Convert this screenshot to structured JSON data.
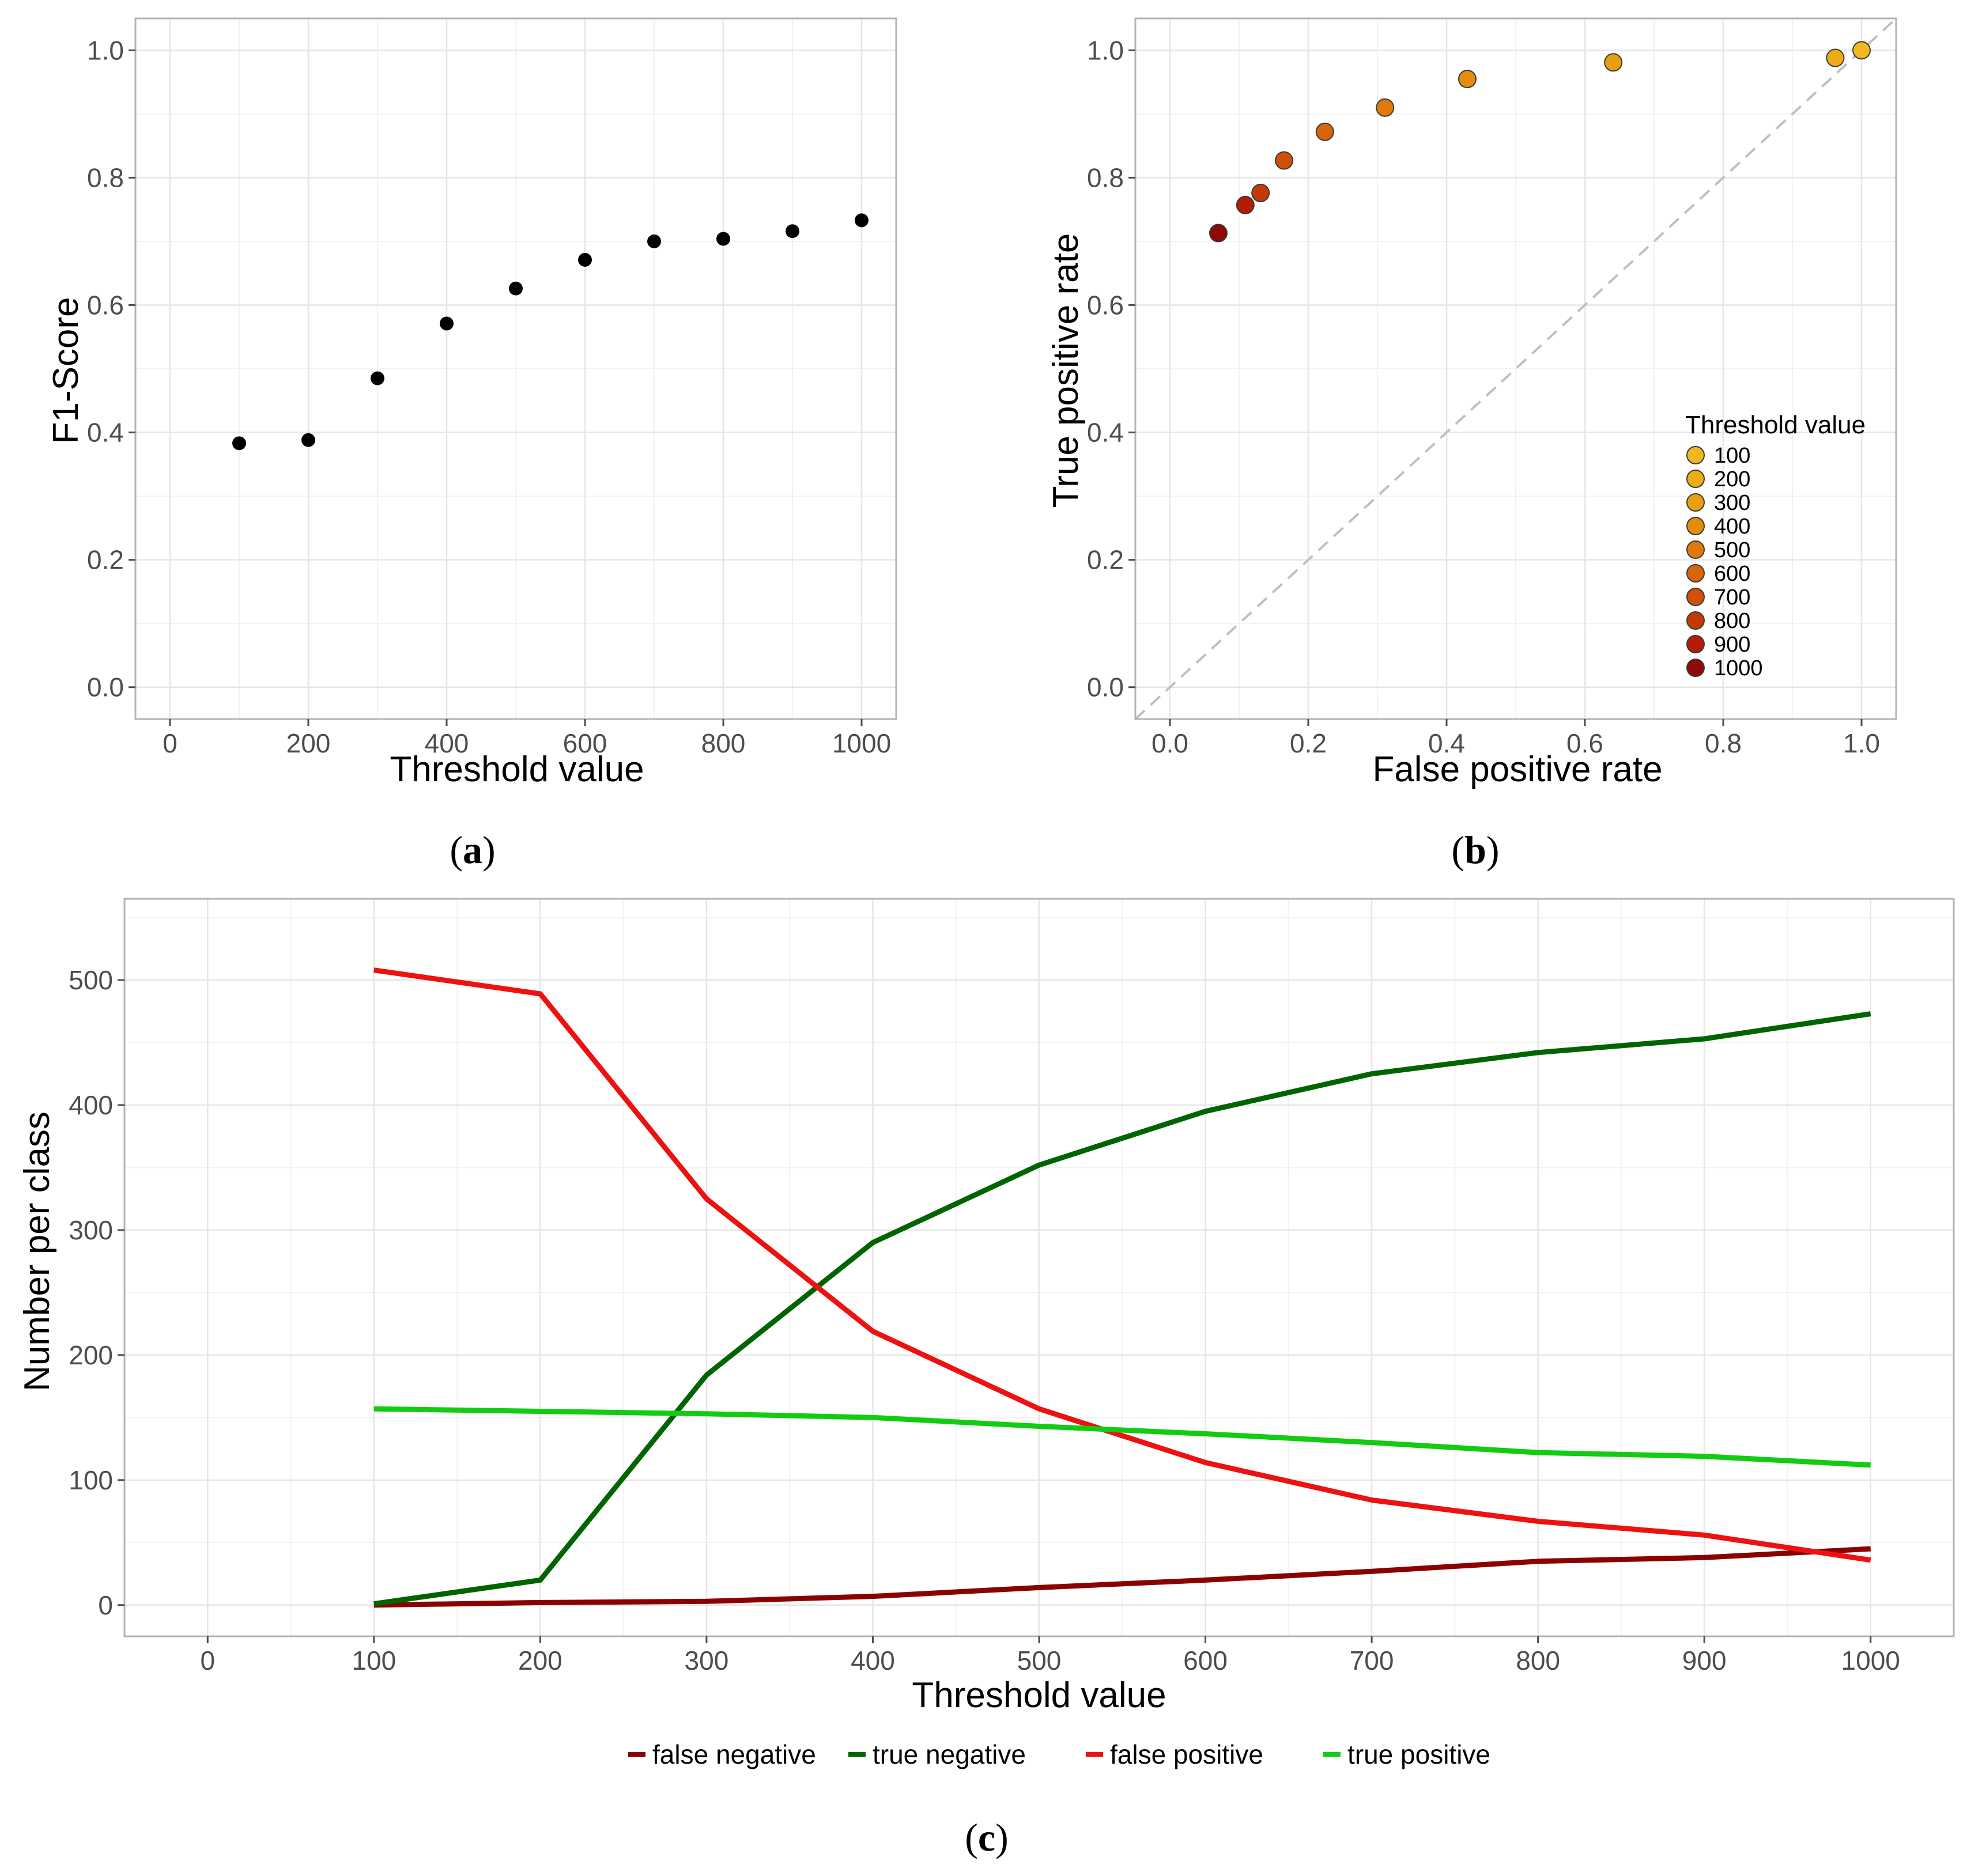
{
  "panel_labels": {
    "a": {
      "open": "(",
      "letter": "a",
      "close": ")"
    },
    "b": {
      "open": "(",
      "letter": "b",
      "close": ")"
    },
    "c": {
      "open": "(",
      "letter": "c",
      "close": ")"
    }
  },
  "chart_data": [
    {
      "id": "a",
      "type": "scatter",
      "xlabel": "Threshold value",
      "ylabel": "F1-Score",
      "xlim": [
        -50,
        1050
      ],
      "ylim": [
        -0.05,
        1.05
      ],
      "xticks": [
        0,
        200,
        400,
        600,
        800,
        1000
      ],
      "xtick_labels": [
        "0",
        "200",
        "400",
        "600",
        "800",
        "1000"
      ],
      "yticks": [
        0.0,
        0.2,
        0.4,
        0.6,
        0.8,
        1.0
      ],
      "ytick_labels": [
        "0.0",
        "0.2",
        "0.4",
        "0.6",
        "0.8",
        "1.0"
      ],
      "grid": true,
      "point_color": "#000000",
      "points": [
        {
          "x": 100,
          "y": 0.383
        },
        {
          "x": 200,
          "y": 0.388
        },
        {
          "x": 300,
          "y": 0.485
        },
        {
          "x": 400,
          "y": 0.571
        },
        {
          "x": 500,
          "y": 0.626
        },
        {
          "x": 600,
          "y": 0.671
        },
        {
          "x": 700,
          "y": 0.7
        },
        {
          "x": 800,
          "y": 0.704
        },
        {
          "x": 900,
          "y": 0.716
        },
        {
          "x": 1000,
          "y": 0.733
        }
      ]
    },
    {
      "id": "b",
      "type": "scatter",
      "xlabel": "False positive rate",
      "ylabel": "True positive rate",
      "xlim": [
        -0.05,
        1.05
      ],
      "ylim": [
        -0.05,
        1.05
      ],
      "xticks": [
        0.0,
        0.2,
        0.4,
        0.6,
        0.8,
        1.0
      ],
      "xtick_labels": [
        "0.0",
        "0.2",
        "0.4",
        "0.6",
        "0.8",
        "1.0"
      ],
      "yticks": [
        0.0,
        0.2,
        0.4,
        0.6,
        0.8,
        1.0
      ],
      "ytick_labels": [
        "0.0",
        "0.2",
        "0.4",
        "0.6",
        "0.8",
        "1.0"
      ],
      "grid": true,
      "diagonal_reference": true,
      "diagonal_color": "#bfbfbf",
      "legend_title": "Threshold value",
      "legend_position": "bottom-right",
      "points": [
        {
          "threshold": "100",
          "x": 1.0,
          "y": 1.0,
          "color": "#f0b81e"
        },
        {
          "threshold": "200",
          "x": 0.962,
          "y": 0.988,
          "color": "#edab15"
        },
        {
          "threshold": "300",
          "x": 0.641,
          "y": 0.981,
          "color": "#e99d10"
        },
        {
          "threshold": "400",
          "x": 0.43,
          "y": 0.955,
          "color": "#e58c0c"
        },
        {
          "threshold": "500",
          "x": 0.311,
          "y": 0.91,
          "color": "#df7a0a"
        },
        {
          "threshold": "600",
          "x": 0.224,
          "y": 0.872,
          "color": "#d86508"
        },
        {
          "threshold": "700",
          "x": 0.165,
          "y": 0.827,
          "color": "#cf5006"
        },
        {
          "threshold": "800",
          "x": 0.131,
          "y": 0.776,
          "color": "#c43a05"
        },
        {
          "threshold": "900",
          "x": 0.109,
          "y": 0.757,
          "color": "#b41d04"
        },
        {
          "threshold": "1000",
          "x": 0.07,
          "y": 0.713,
          "color": "#8e0a08"
        }
      ]
    },
    {
      "id": "c",
      "type": "line",
      "xlabel": "Threshold value",
      "ylabel": "Number per class",
      "xlim": [
        -50,
        1050
      ],
      "ylim": [
        -25,
        565
      ],
      "xticks": [
        0,
        100,
        200,
        300,
        400,
        500,
        600,
        700,
        800,
        900,
        1000
      ],
      "xtick_labels": [
        "0",
        "100",
        "200",
        "300",
        "400",
        "500",
        "600",
        "700",
        "800",
        "900",
        "1000"
      ],
      "yticks": [
        0,
        100,
        200,
        300,
        400,
        500
      ],
      "ytick_labels": [
        "0",
        "100",
        "200",
        "300",
        "400",
        "500"
      ],
      "grid": true,
      "legend_position": "bottom",
      "x": [
        100,
        200,
        300,
        400,
        500,
        600,
        700,
        800,
        900,
        1000
      ],
      "series": [
        {
          "name": "false negative",
          "color": "#8b0000",
          "values": [
            0,
            2,
            3,
            7,
            14,
            20,
            27,
            35,
            38,
            45
          ]
        },
        {
          "name": "true negative",
          "color": "#006400",
          "values": [
            1,
            20,
            184,
            290,
            352,
            395,
            425,
            442,
            453,
            473
          ]
        },
        {
          "name": "false positive",
          "color": "#ee1111",
          "values": [
            508,
            489,
            325,
            219,
            157,
            114,
            84,
            67,
            56,
            36
          ]
        },
        {
          "name": "true positive",
          "color": "#11cc11",
          "values": [
            157,
            155,
            153,
            150,
            143,
            137,
            130,
            122,
            119,
            112
          ]
        }
      ]
    }
  ]
}
